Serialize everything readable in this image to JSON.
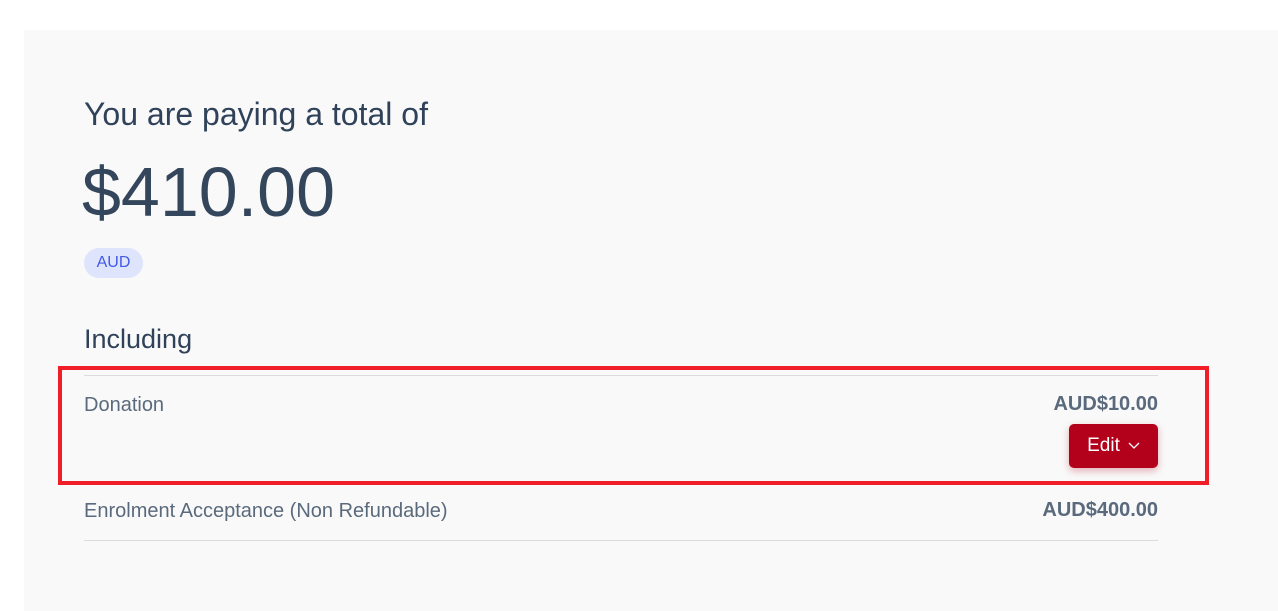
{
  "summary": {
    "title": "You are paying a total of",
    "total": "$410.00",
    "currency": "AUD",
    "including_label": "Including"
  },
  "items": [
    {
      "label": "Donation",
      "amount": "AUD$10.00",
      "edit_label": "Edit"
    },
    {
      "label": "Enrolment Acceptance (Non Refundable)",
      "amount": "AUD$400.00"
    }
  ],
  "colors": {
    "accent": "#b3001b",
    "highlight": "#f01e28",
    "pill_bg": "#dfe4fd",
    "pill_text": "#4259e6"
  },
  "icons": {
    "edit_dropdown": "chevron-down-icon"
  }
}
